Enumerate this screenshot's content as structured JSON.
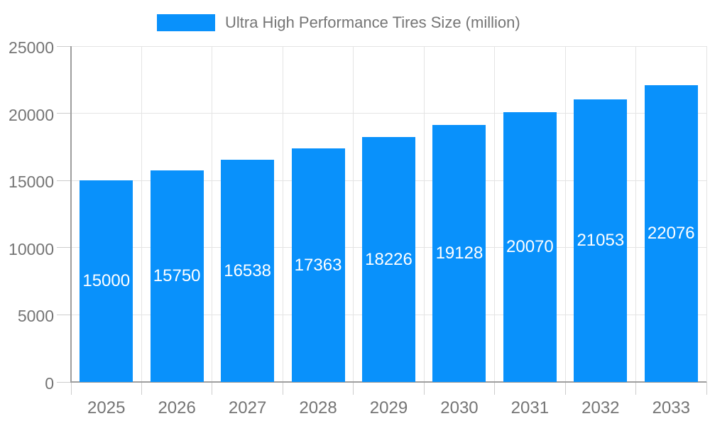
{
  "chart_data": {
    "type": "bar",
    "title": "Ultra High Performance Tires Size (million)",
    "categories": [
      "2025",
      "2026",
      "2027",
      "2028",
      "2029",
      "2030",
      "2031",
      "2032",
      "2033"
    ],
    "values": [
      15000,
      15750,
      16538,
      17363,
      18226,
      19128,
      20070,
      21053,
      22076
    ],
    "xlabel": "",
    "ylabel": "",
    "ylim": [
      0,
      25000
    ],
    "yticks": [
      0,
      5000,
      10000,
      15000,
      20000,
      25000
    ],
    "ytick_labels": [
      "0",
      "5000",
      "10000",
      "15000",
      "20000",
      "25000"
    ],
    "grid": "both",
    "legend_position": "top-center",
    "bar_label_position": "inside-middle",
    "colors": {
      "bar": "#0991fb",
      "bar_label": "#ffffff",
      "axis_text": "#757575",
      "grid_line": "#e4e4e4",
      "tick_line": "#cccccc",
      "axis_line": "#9e9e9e",
      "background": "#ffffff"
    }
  }
}
